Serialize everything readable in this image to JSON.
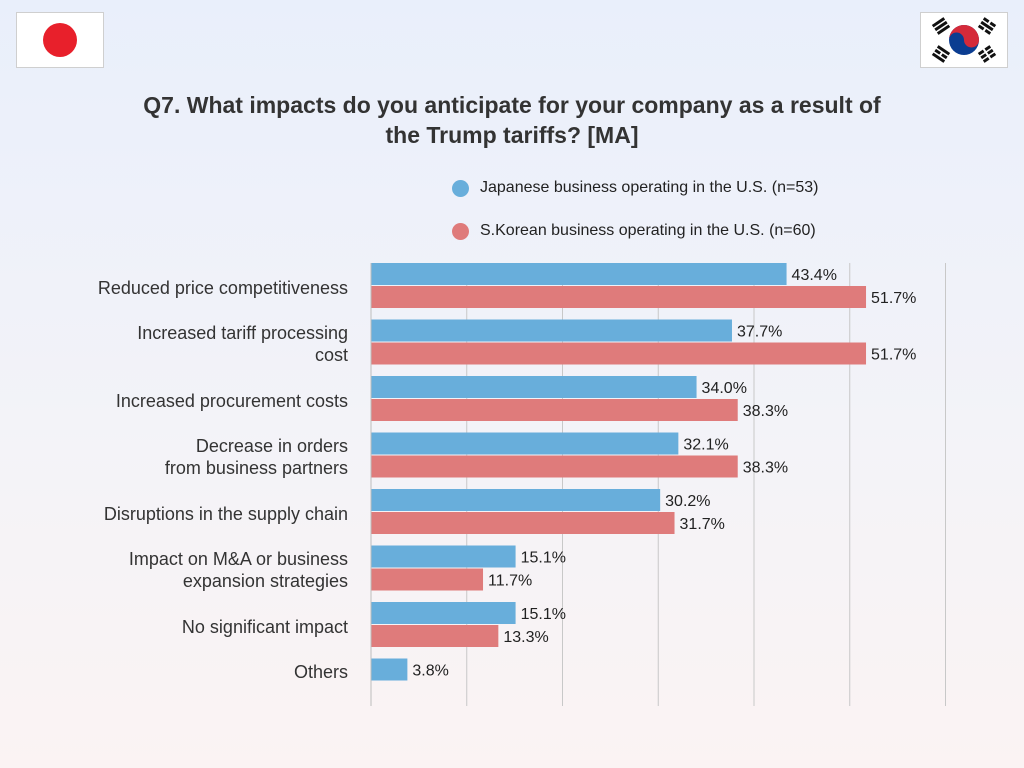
{
  "title_line1": "Q7. What impacts do you anticipate for your company as a result of",
  "title_line2": "the Trump tariffs?  [MA]",
  "flags": {
    "left": "japan-flag",
    "right": "south-korea-flag"
  },
  "colors": {
    "japan": "#68aedb",
    "korea": "#df7b7b",
    "grid": "#c8c8c8"
  },
  "chart_data": {
    "type": "bar",
    "orientation": "horizontal",
    "categories": [
      "Reduced price competitiveness",
      "Increased tariff processing\ncost",
      "Increased procurement costs",
      "Decrease in orders\nfrom business partners",
      "Disruptions in the supply chain",
      "Impact on M&A or business\nexpansion strategies",
      "No significant impact",
      "Others"
    ],
    "series": [
      {
        "name": "Japanese business operating in the U.S. (n=53)",
        "values": [
          43.4,
          37.7,
          34.0,
          32.1,
          30.2,
          15.1,
          15.1,
          3.8
        ],
        "labels": [
          "43.4%",
          "37.7%",
          "34.0%",
          "32.1%",
          "30.2%",
          "15.1%",
          "15.1%",
          "3.8%"
        ]
      },
      {
        "name": "S.Korean business operating in the U.S. (n=60)",
        "values": [
          51.7,
          51.7,
          38.3,
          38.3,
          31.7,
          11.7,
          13.3,
          null
        ],
        "labels": [
          "51.7%",
          "51.7%",
          "38.3%",
          "38.3%",
          "31.7%",
          "11.7%",
          "13.3%",
          ""
        ]
      }
    ],
    "xlim": [
      0,
      60
    ],
    "grid": true,
    "legend_position": "top"
  }
}
